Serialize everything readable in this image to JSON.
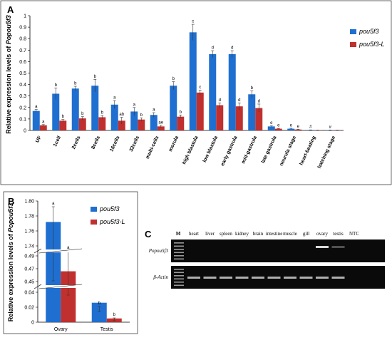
{
  "colors": {
    "pou5f3": "#1f6fd0",
    "pou5f3_L": "#c0302e",
    "axis": "#000000",
    "gel_bg": "#0a0a0a",
    "band": "#d8d8d8"
  },
  "panels": {
    "a": "A",
    "b": "B",
    "c": "C"
  },
  "chart_data": [
    {
      "type": "bar",
      "panel": "A",
      "ylabel": "Relative expression levels of Popou5f3",
      "ylim": [
        0,
        1
      ],
      "yticks": [
        "0",
        "0.1",
        "0.2",
        "0.3",
        "0.4",
        "0.5",
        "0.6",
        "0.7",
        "0.8",
        "0.9",
        "1"
      ],
      "categories": [
        "UF",
        "1cell",
        "2cells",
        "8cells",
        "16cells",
        "32cells",
        "multi-cells",
        "morula",
        "high blastula",
        "low blastula",
        "early gastrula",
        "mid-gastrula",
        "late gastrula",
        "neurula stage",
        "heart-beating",
        "hatching stage"
      ],
      "series": [
        {
          "name": "pou5f3",
          "values": [
            0.17,
            0.32,
            0.365,
            0.39,
            0.225,
            0.165,
            0.135,
            0.39,
            0.855,
            0.665,
            0.665,
            0.315,
            0.035,
            0.015,
            0.004,
            0.003
          ],
          "errors": [
            0.012,
            0.05,
            0.02,
            0.055,
            0.035,
            0.035,
            0.02,
            0.035,
            0.07,
            0.03,
            0.03,
            0.03,
            0.005,
            0.004,
            0.001,
            0.001
          ],
          "labels": [
            "a",
            "b",
            "b",
            "b",
            "a",
            "a",
            "a",
            "b",
            "c",
            "d",
            "d",
            "b",
            "e",
            "e",
            "#",
            "#"
          ]
        },
        {
          "name": "pou5f3-L",
          "values": [
            0.045,
            0.085,
            0.105,
            0.115,
            0.085,
            0.095,
            0.035,
            0.12,
            0.33,
            0.22,
            0.21,
            0.195,
            0.015,
            0.008,
            0.002,
            0.002
          ],
          "errors": [
            0.006,
            0.01,
            0.015,
            0.015,
            0.03,
            0.015,
            0.01,
            0.015,
            0.02,
            0.02,
            0.03,
            0.035,
            0.003,
            0.002,
            0.001,
            0.001
          ],
          "labels": [
            "a",
            "b",
            "b",
            "b",
            "ab",
            "b",
            "ae",
            "b",
            "c",
            "d",
            "d",
            "d",
            "e",
            "e",
            "",
            ""
          ]
        }
      ],
      "legend": "top-right"
    },
    {
      "type": "bar",
      "panel": "B",
      "ylabel": "Relative expression levels of Popou5f3",
      "axis_breaks": [
        [
          0.04,
          0.45
        ],
        [
          0.49,
          1.74
        ]
      ],
      "yticks": [
        "0",
        "0.02",
        "0.04",
        "0.45",
        "0.47",
        "0.49",
        "1.74",
        "1.76",
        "1.78",
        "1.80"
      ],
      "categories": [
        "Ovary",
        "Testis"
      ],
      "series": [
        {
          "name": "pou5f3",
          "values": [
            1.772,
            0.026
          ],
          "labels": [
            "a",
            "b"
          ]
        },
        {
          "name": "pou5f3-L",
          "values": [
            0.466,
            0.005
          ],
          "labels": [
            "a",
            "b"
          ]
        }
      ],
      "legend": "top-right"
    }
  ],
  "gel": {
    "marker": "M",
    "lanes": [
      "heart",
      "liver",
      "spleen",
      "kidney",
      "brain",
      "intestine",
      "muscle",
      "gill",
      "ovary",
      "testis",
      "NTC"
    ],
    "rows": [
      {
        "label": "Popou5f3",
        "intensity": [
          0,
          0,
          0,
          0,
          0,
          0,
          0,
          0,
          1,
          0.35,
          0
        ]
      },
      {
        "label": "β-Actin",
        "intensity": [
          0.8,
          0.8,
          0.8,
          0.8,
          0.8,
          0.8,
          0.8,
          0.8,
          0.8,
          0.8,
          0
        ]
      }
    ]
  }
}
